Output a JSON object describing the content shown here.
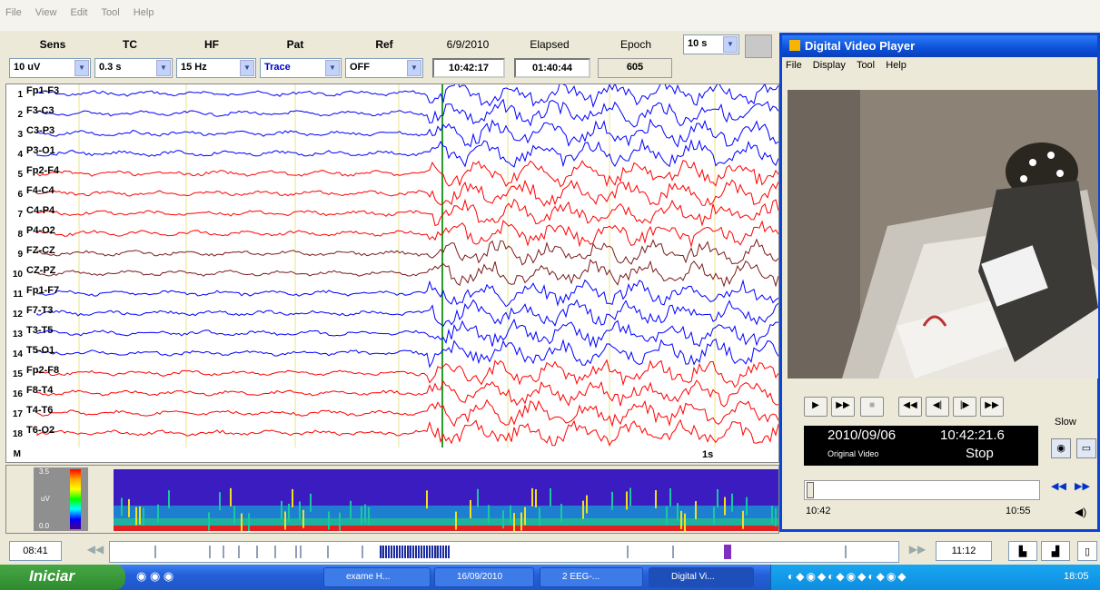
{
  "menu": [
    "File",
    "View",
    "Edit",
    "Tool",
    "Help"
  ],
  "controls": {
    "labels": {
      "sens": "Sens",
      "tc": "TC",
      "hf": "HF",
      "pat": "Pat",
      "ref": "Ref",
      "date": "6/9/2010",
      "elapsed": "Elapsed",
      "epoch": "Epoch"
    },
    "sens_value": "10 uV",
    "tc_value": "0.3 s",
    "hf_value": "15 Hz",
    "pat_value": "Trace",
    "ref_value": "OFF",
    "time_value": "10:42:17",
    "elapsed_value": "01:40:44",
    "epoch_value": "605",
    "page_value": "10 s"
  },
  "channels": [
    "Fp1-F3",
    "F3-C3",
    "C3-P3",
    "P3-O1",
    "Fp2-F4",
    "F4-C4",
    "C4-P4",
    "P4-O2",
    "FZ-CZ",
    "CZ-PZ",
    "Fp1-F7",
    "F7-T3",
    "T3-T5",
    "T5-O1",
    "Fp2-F8",
    "F8-T4",
    "T4-T6",
    "T6-O2"
  ],
  "channel_numbers": [
    "1",
    "2",
    "3",
    "4",
    "5",
    "6",
    "7",
    "8",
    "9",
    "10",
    "11",
    "12",
    "13",
    "14",
    "15",
    "16",
    "17",
    "18"
  ],
  "marker_label": "M",
  "scale_label": "1s",
  "spectrogram": {
    "max": "3.5",
    "unit": "uV",
    "min": "0.0"
  },
  "timeline": {
    "start": "08:41",
    "end": "11:12"
  },
  "video_player": {
    "title": "Digital Video Player",
    "menu": [
      "File",
      "Display",
      "Tool",
      "Help"
    ],
    "date": "2010/09/06",
    "time": "10:42:21.6",
    "source": "Original Video",
    "state": "Stop",
    "speed_label": "Slow",
    "slider_start": "10:42",
    "slider_end": "10:55"
  },
  "taskbar": {
    "start": "Iniciar",
    "tasks": [
      "exame H...",
      "16/09/2010",
      "2 EEG-...",
      "Digital Vi..."
    ],
    "clock": "18:05"
  },
  "colors": {
    "blue_trace": "#0000ff",
    "red_trace": "#ff0000",
    "brown_trace": "#7a1a1a",
    "title_bar": "#0b4fd8"
  }
}
